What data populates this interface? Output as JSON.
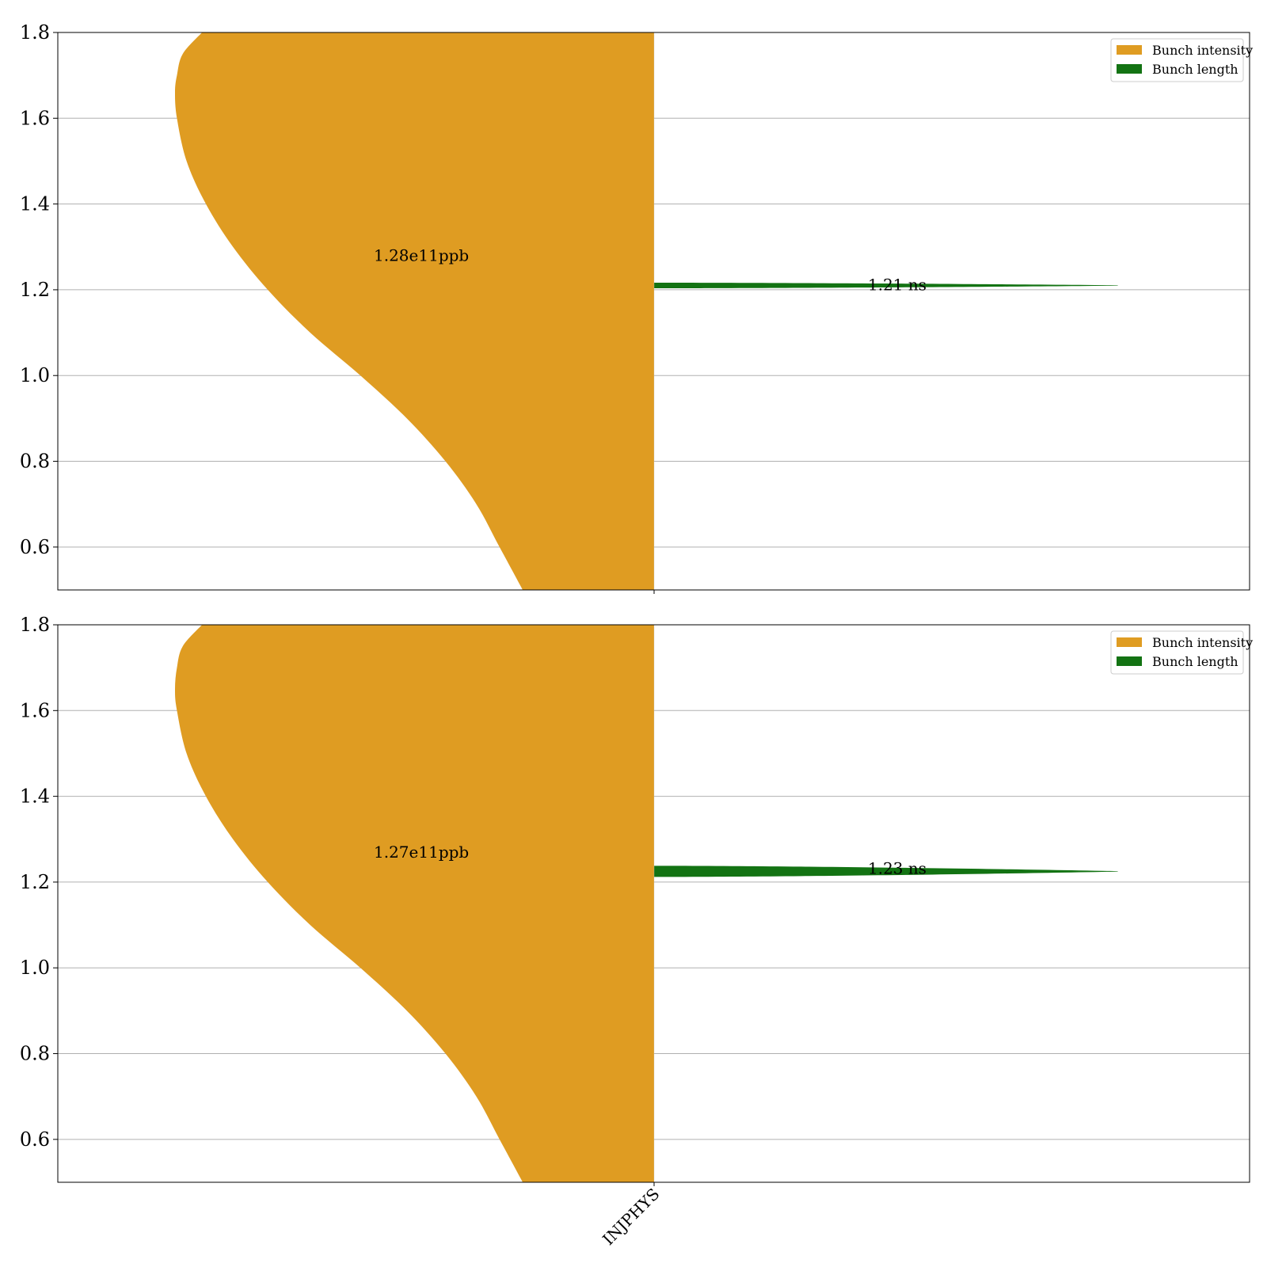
{
  "colors": {
    "intensity": "#df9c22",
    "length": "#137313",
    "grid": "#b0b0b0",
    "frame": "#000000"
  },
  "chart_data": [
    {
      "type": "violin",
      "x_categories": [
        "INJPHYS"
      ],
      "ylim": [
        0.5,
        1.8
      ],
      "yticks": [
        0.6,
        0.8,
        1.0,
        1.2,
        1.4,
        1.6,
        1.8
      ],
      "ytick_labels": [
        "0.6",
        "0.8",
        "1.0",
        "1.2",
        "1.4",
        "1.6",
        "1.8"
      ],
      "grid": true,
      "legend_position": "top-right",
      "series": [
        {
          "name": "Bunch intensity",
          "side": "left",
          "annotation": "1.28e11ppb",
          "annotation_y": 1.28,
          "profile": [
            [
              0.5,
              0.34
            ],
            [
              0.6,
              0.4
            ],
            [
              0.7,
              0.46
            ],
            [
              0.8,
              0.54
            ],
            [
              0.9,
              0.64
            ],
            [
              1.0,
              0.76
            ],
            [
              1.1,
              0.89
            ],
            [
              1.2,
              1.0
            ],
            [
              1.3,
              1.09
            ],
            [
              1.4,
              1.16
            ],
            [
              1.5,
              1.21
            ],
            [
              1.6,
              1.235
            ],
            [
              1.66,
              1.24
            ],
            [
              1.7,
              1.235
            ],
            [
              1.75,
              1.22
            ],
            [
              1.8,
              1.17
            ]
          ]
        },
        {
          "name": "Bunch length",
          "side": "right",
          "annotation": "1.21 ns",
          "annotation_y": 1.21,
          "center": 1.21,
          "spread": 0.012,
          "width_fraction": 0.8
        }
      ]
    },
    {
      "type": "violin",
      "x_categories": [
        "INJPHYS"
      ],
      "ylim": [
        0.5,
        1.8
      ],
      "yticks": [
        0.6,
        0.8,
        1.0,
        1.2,
        1.4,
        1.6,
        1.8
      ],
      "ytick_labels": [
        "0.6",
        "0.8",
        "1.0",
        "1.2",
        "1.4",
        "1.6",
        "1.8"
      ],
      "grid": true,
      "legend_position": "top-right",
      "series": [
        {
          "name": "Bunch intensity",
          "side": "left",
          "annotation": "1.27e11ppb",
          "annotation_y": 1.27,
          "profile": [
            [
              0.5,
              0.34
            ],
            [
              0.6,
              0.4
            ],
            [
              0.7,
              0.46
            ],
            [
              0.8,
              0.54
            ],
            [
              0.9,
              0.64
            ],
            [
              1.0,
              0.76
            ],
            [
              1.1,
              0.89
            ],
            [
              1.2,
              1.0
            ],
            [
              1.3,
              1.09
            ],
            [
              1.4,
              1.16
            ],
            [
              1.5,
              1.21
            ],
            [
              1.6,
              1.235
            ],
            [
              1.65,
              1.24
            ],
            [
              1.7,
              1.235
            ],
            [
              1.75,
              1.22
            ],
            [
              1.8,
              1.17
            ]
          ]
        },
        {
          "name": "Bunch length",
          "side": "right",
          "annotation": "1.23 ns",
          "annotation_y": 1.23,
          "center": 1.225,
          "spread": 0.025,
          "width_fraction": 0.8
        }
      ]
    }
  ]
}
